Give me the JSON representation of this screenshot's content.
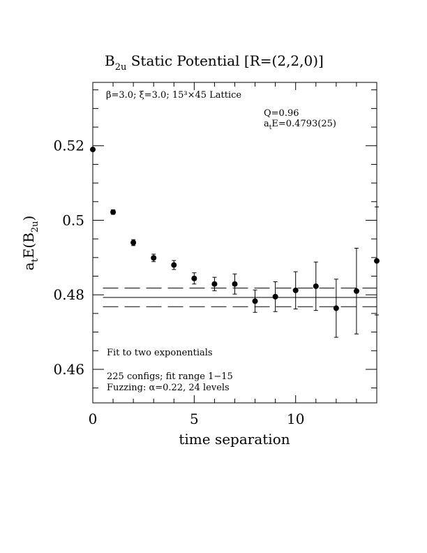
{
  "chart_data": {
    "type": "scatter",
    "title": "B_2u Static Potential [R=(2,2,0)]",
    "title_main": "B",
    "title_sub": "2u",
    "title_rest": " Static Potential [R=(2,2,0)]",
    "xlabel": "time separation",
    "ylabel": "a_tE(B_2u)",
    "ylabel_a": "a",
    "ylabel_t": "t",
    "ylabel_E": "E(B",
    "ylabel_sub": "2u",
    "ylabel_close": ")",
    "xlim": [
      0,
      14
    ],
    "ylim": [
      0.451,
      0.537
    ],
    "x_ticks": [
      0,
      5,
      10
    ],
    "x_tick_labels": [
      "0",
      "5",
      "10"
    ],
    "y_ticks": [
      0.46,
      0.48,
      0.5,
      0.52
    ],
    "y_tick_labels": [
      "0.46",
      "0.48",
      "0.5",
      "0.52"
    ],
    "x_minor_step": 1,
    "y_minor_step": 0.005,
    "grid": false,
    "points": [
      {
        "x": 0,
        "y": 0.519,
        "err": 0.0004
      },
      {
        "x": 1,
        "y": 0.5022,
        "err": 0.0006
      },
      {
        "x": 2,
        "y": 0.494,
        "err": 0.0008
      },
      {
        "x": 3,
        "y": 0.4899,
        "err": 0.001
      },
      {
        "x": 4,
        "y": 0.488,
        "err": 0.0012
      },
      {
        "x": 5,
        "y": 0.4844,
        "err": 0.0015
      },
      {
        "x": 6,
        "y": 0.4829,
        "err": 0.0018
      },
      {
        "x": 7,
        "y": 0.4829,
        "err": 0.0027
      },
      {
        "x": 8,
        "y": 0.4783,
        "err": 0.003
      },
      {
        "x": 9,
        "y": 0.4795,
        "err": 0.004
      },
      {
        "x": 10,
        "y": 0.4812,
        "err": 0.005
      },
      {
        "x": 11,
        "y": 0.4823,
        "err": 0.0065
      },
      {
        "x": 12,
        "y": 0.4764,
        "err": 0.0078
      },
      {
        "x": 13,
        "y": 0.481,
        "err": 0.0115
      },
      {
        "x": 14,
        "y": 0.4891,
        "err": 0.0145
      }
    ],
    "fit": {
      "value": 0.4793,
      "err": 0.0025
    },
    "annotations": {
      "lattice": "β=3.0; ξ=3.0; 15³×45 Lattice",
      "q_label": "Q=0.96",
      "energy_prefix": "a",
      "energy_sub": "t",
      "energy_rest": "E=0.4793(25)",
      "fit_desc": "Fit to two exponentials",
      "configs": "225 configs; fit range 1−15",
      "fuzzing": "Fuzzing: α=0.22, 24 levels"
    }
  }
}
